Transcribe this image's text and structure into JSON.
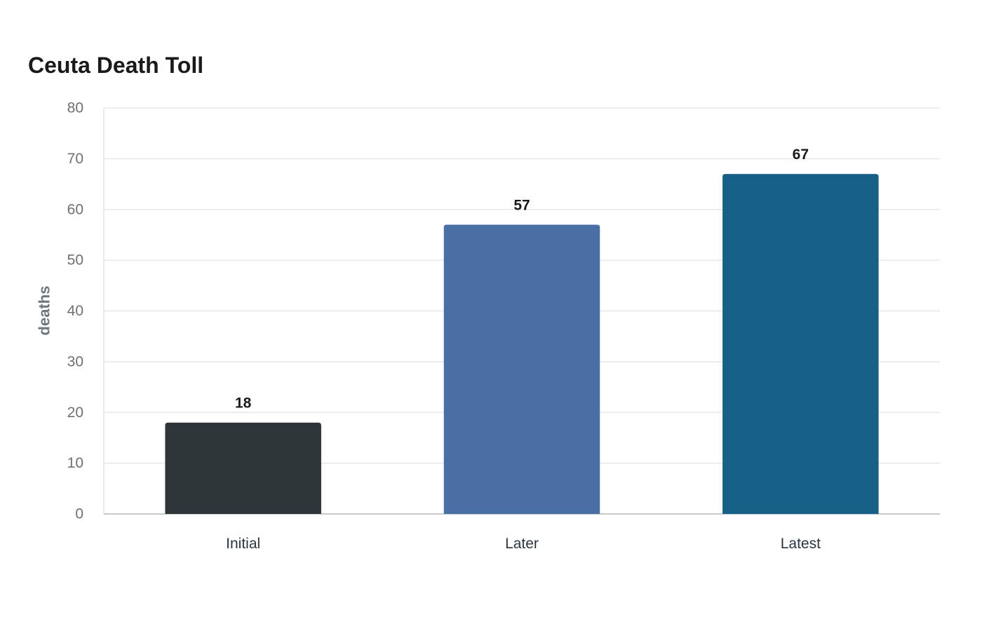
{
  "chart_data": {
    "type": "bar",
    "title": "Ceuta Death Toll",
    "xlabel": "",
    "ylabel": "deaths",
    "categories": [
      "Initial",
      "Later",
      "Latest"
    ],
    "values": [
      18,
      57,
      67
    ],
    "colors": [
      "#2e3538",
      "#4a6fa5",
      "#166088"
    ],
    "ylim": [
      0,
      80
    ],
    "yticks": [
      0,
      10,
      20,
      30,
      40,
      50,
      60,
      70,
      80
    ],
    "grid": true,
    "legend": "none"
  }
}
